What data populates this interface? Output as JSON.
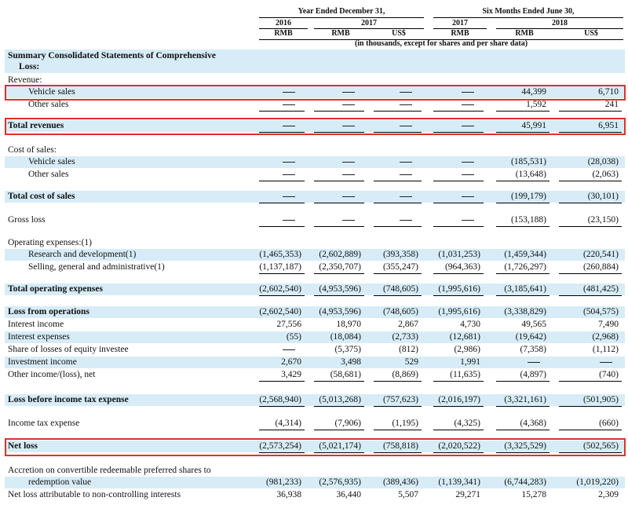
{
  "header": {
    "year_ended": "Year Ended December 31,",
    "six_months": "Six Months Ended June 30,",
    "years": [
      "2016",
      "2017",
      "2017",
      "2018"
    ],
    "currencies": [
      "RMB",
      "RMB",
      "US$",
      "RMB",
      "RMB",
      "US$"
    ],
    "note": "(in thousands, except for shares and per share data)"
  },
  "section_title": "Summary Consolidated Statements of Comprehensive",
  "section_title_2": "Loss:",
  "rows": [
    {
      "label": "Revenue:",
      "style": "plain",
      "values": null
    },
    {
      "label": "Vehicle sales",
      "style": "indent",
      "values": [
        "—",
        "—",
        "—",
        "—",
        "44,399",
        "6,710"
      ]
    },
    {
      "label": "Other sales",
      "style": "indent",
      "values": [
        "—",
        "—",
        "—",
        "—",
        "1,592",
        "241"
      ]
    },
    {
      "label": "Total revenues",
      "style": "bold",
      "values": [
        "—",
        "—",
        "—",
        "—",
        "45,991",
        "6,951"
      ]
    },
    {
      "label": "Cost of sales:",
      "style": "plain",
      "values": null
    },
    {
      "label": "Vehicle sales",
      "style": "indent",
      "values": [
        "—",
        "—",
        "—",
        "—",
        "(185,531)",
        "(28,038)"
      ]
    },
    {
      "label": "Other sales",
      "style": "indent",
      "values": [
        "—",
        "—",
        "—",
        "—",
        "(13,648)",
        "(2,063)"
      ]
    },
    {
      "label": "Total cost of sales",
      "style": "bold",
      "values": [
        "—",
        "—",
        "—",
        "—",
        "(199,179)",
        "(30,101)"
      ]
    },
    {
      "label": "Gross loss",
      "style": "plain",
      "values": [
        "—",
        "—",
        "—",
        "—",
        "(153,188)",
        "(23,150)"
      ]
    },
    {
      "label": "Operating expenses:(1)",
      "style": "plain",
      "values": null
    },
    {
      "label": "Research and development(1)",
      "style": "indent",
      "values": [
        "(1,465,353)",
        "(2,602,889)",
        "(393,358)",
        "(1,031,253)",
        "(1,459,344)",
        "(220,541)"
      ]
    },
    {
      "label": "Selling, general and administrative(1)",
      "style": "indent",
      "values": [
        "(1,137,187)",
        "(2,350,707)",
        "(355,247)",
        "(964,363)",
        "(1,726,297)",
        "(260,884)"
      ]
    },
    {
      "label": "Total operating expenses",
      "style": "bold",
      "values": [
        "(2,602,540)",
        "(4,953,596)",
        "(748,605)",
        "(1,995,616)",
        "(3,185,641)",
        "(481,425)"
      ]
    },
    {
      "label": "Loss from operations",
      "style": "bold",
      "values": [
        "(2,602,540)",
        "(4,953,596)",
        "(748,605)",
        "(1,995,616)",
        "(3,338,829)",
        "(504,575)"
      ]
    },
    {
      "label": "Interest income",
      "style": "plain",
      "values": [
        "27,556",
        "18,970",
        "2,867",
        "4,730",
        "49,565",
        "7,490"
      ]
    },
    {
      "label": "Interest expenses",
      "style": "plain",
      "values": [
        "(55)",
        "(18,084)",
        "(2,733)",
        "(12,681)",
        "(19,642)",
        "(2,968)"
      ]
    },
    {
      "label": "Share of losses of equity investee",
      "style": "plain",
      "values": [
        "—",
        "(5,375)",
        "(812)",
        "(2,986)",
        "(7,358)",
        "(1,112)"
      ]
    },
    {
      "label": "Investment income",
      "style": "plain",
      "values": [
        "2,670",
        "3,498",
        "529",
        "1,991",
        "—",
        "—"
      ]
    },
    {
      "label": "Other income/(loss), net",
      "style": "plain",
      "values": [
        "3,429",
        "(58,681)",
        "(8,869)",
        "(11,635)",
        "(4,897)",
        "(740)"
      ]
    },
    {
      "label": "Loss before income tax expense",
      "style": "bold",
      "values": [
        "(2,568,940)",
        "(5,013,268)",
        "(757,623)",
        "(2,016,197)",
        "(3,321,161)",
        "(501,905)"
      ]
    },
    {
      "label": "Income tax expense",
      "style": "plain",
      "values": [
        "(4,314)",
        "(7,906)",
        "(1,195)",
        "(4,325)",
        "(4,368)",
        "(660)"
      ]
    },
    {
      "label": "Net loss",
      "style": "bold",
      "values": [
        "(2,573,254)",
        "(5,021,174)",
        "(758,818)",
        "(2,020,522)",
        "(3,325,529)",
        "(502,565)"
      ]
    },
    {
      "label": "Accretion on convertible redeemable preferred shares to",
      "style": "plain",
      "values": null
    },
    {
      "label": "redemption value",
      "style": "indent",
      "values": [
        "(981,233)",
        "(2,576,935)",
        "(389,436)",
        "(1,139,341)",
        "(6,744,283)",
        "(1,019,220)"
      ]
    },
    {
      "label": "Net loss attributable to non-controlling interests",
      "style": "plain",
      "values": [
        "36,938",
        "36,440",
        "5,507",
        "29,271",
        "15,278",
        "2,309"
      ]
    }
  ],
  "colors": {
    "shade": "#d7ecf7",
    "highlight": "#e0302a"
  }
}
